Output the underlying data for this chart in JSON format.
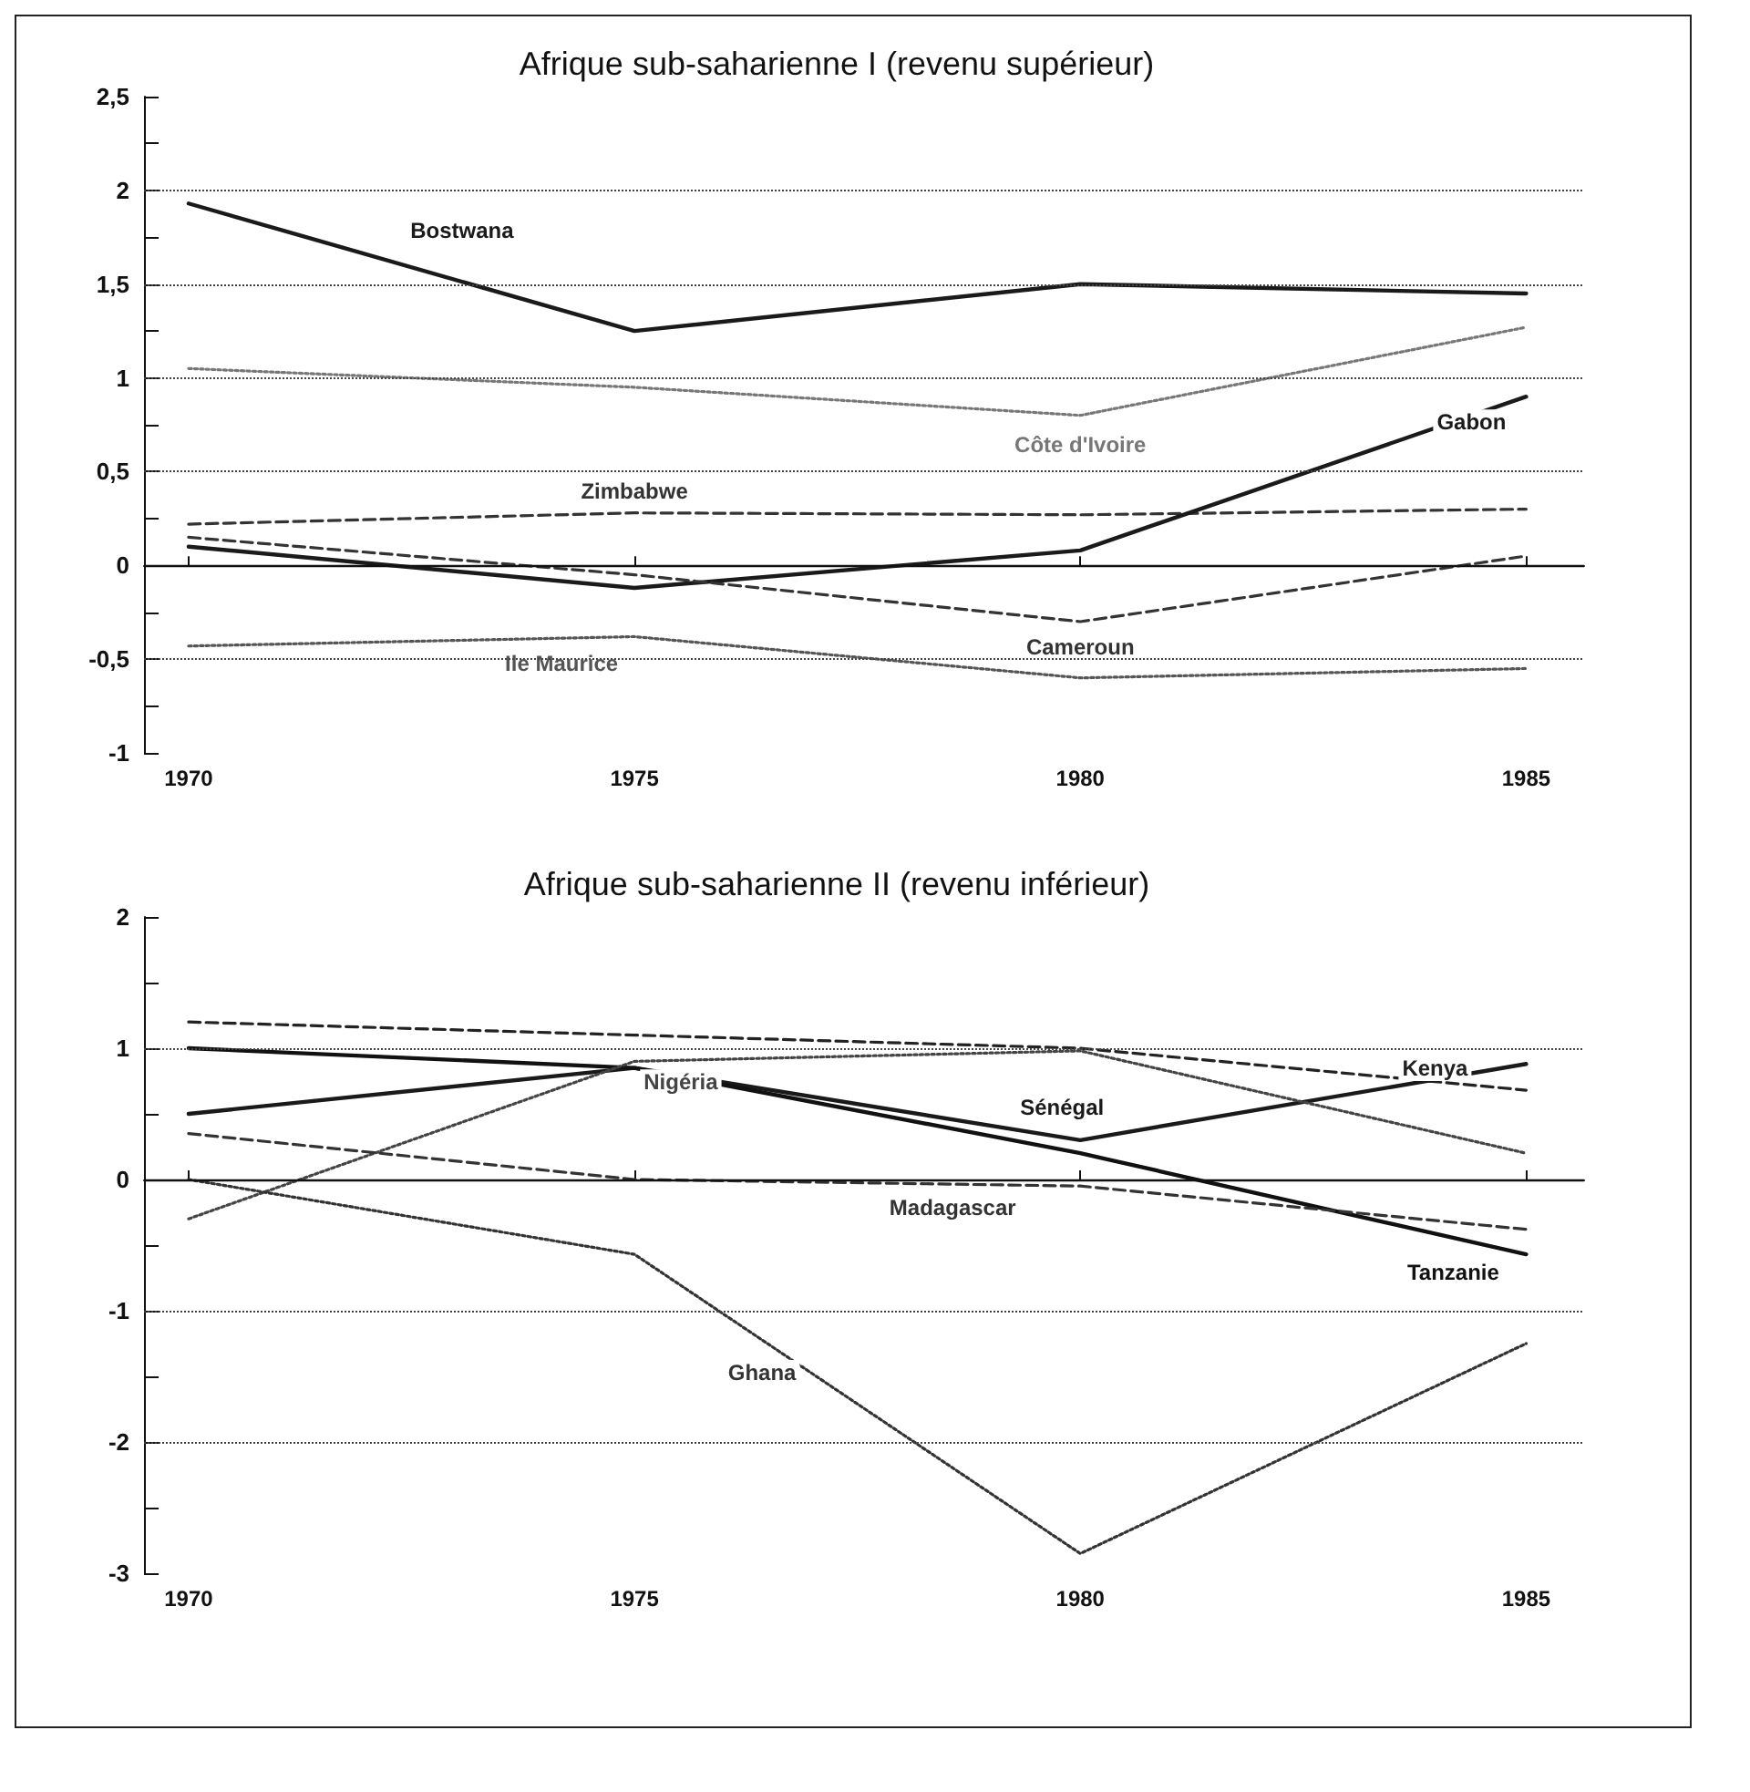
{
  "chart_data": [
    {
      "type": "line",
      "title": "Afrique sub-saharienne I (revenu supérieur)",
      "x": [
        1970,
        1975,
        1980,
        1985
      ],
      "xlim": [
        1969.5,
        1985.65
      ],
      "xticks": [
        1970,
        1975,
        1980,
        1985
      ],
      "ylim": [
        -1,
        2.5
      ],
      "yticks": [
        {
          "value": -1,
          "label": "-1"
        },
        {
          "value": -0.75,
          "label": null
        },
        {
          "value": -0.5,
          "label": "-0,5"
        },
        {
          "value": -0.25,
          "label": null
        },
        0,
        {
          "value": 0.25,
          "label": null
        },
        {
          "value": 0.5,
          "label": "0,5"
        },
        {
          "value": 0.75,
          "label": null
        },
        1,
        {
          "value": 1.25,
          "label": null
        },
        {
          "value": 1.5,
          "label": "1,5"
        },
        {
          "value": 1.75,
          "label": null
        },
        2,
        {
          "value": 2.25,
          "label": null
        },
        {
          "value": 2.5,
          "label": "2,5"
        }
      ],
      "grid": "y",
      "legend": false,
      "ref_lines": [
        {
          "axis": "y",
          "value": 0,
          "color": "#111111",
          "line_style": "solid"
        }
      ],
      "series": [
        {
          "name": "Bostwana",
          "color": "#1a1a1a",
          "line_style": "solid",
          "values": [
            1.93,
            1.25,
            1.5,
            1.45
          ]
        },
        {
          "name": "Côte d'Ivoire",
          "color": "#777777",
          "line_style": "dotted",
          "values": [
            1.05,
            0.95,
            0.8,
            1.27
          ]
        },
        {
          "name": "Zimbabwe",
          "color": "#333333",
          "line_style": "dashed",
          "values": [
            0.22,
            0.28,
            0.27,
            0.3
          ]
        },
        {
          "name": "Gabon",
          "color": "#1a1a1a",
          "line_style": "solid",
          "values": [
            0.1,
            -0.12,
            0.08,
            0.9
          ]
        },
        {
          "name": "Cameroun",
          "color": "#333333",
          "line_style": "dashed",
          "values": [
            0.15,
            -0.05,
            -0.3,
            0.05
          ]
        },
        {
          "name": "Ile Maurice",
          "color": "#555555",
          "line_style": "dotted",
          "values": [
            -0.43,
            -0.38,
            -0.6,
            -0.55
          ]
        }
      ]
    },
    {
      "type": "line",
      "title": "Afrique sub-saharienne II (revenu inférieur)",
      "x": [
        1970,
        1975,
        1980,
        1985
      ],
      "xlim": [
        1969.5,
        1985.65
      ],
      "xticks": [
        1970,
        1975,
        1980,
        1985
      ],
      "ylim": [
        -3,
        2
      ],
      "yticks": [
        -3,
        {
          "value": -2.5,
          "label": null
        },
        -2,
        {
          "value": -1.5,
          "label": null
        },
        -1,
        {
          "value": -0.5,
          "label": null
        },
        0,
        {
          "value": 0.5,
          "label": null
        },
        1,
        {
          "value": 1.5,
          "label": null
        },
        2
      ],
      "grid": "y",
      "legend": false,
      "ref_lines": [
        {
          "axis": "y",
          "value": 0,
          "color": "#111111",
          "line_style": "solid"
        }
      ],
      "series": [
        {
          "name": "Kenya",
          "color": "#222222",
          "line_style": "dashed",
          "values": [
            1.2,
            1.1,
            1.0,
            0.68
          ]
        },
        {
          "name": "Sénégal",
          "color": "#1a1a1a",
          "line_style": "solid",
          "values": [
            0.5,
            0.85,
            0.3,
            0.88
          ]
        },
        {
          "name": "Tanzanie",
          "color": "#111111",
          "line_style": "solid",
          "values": [
            1.0,
            0.85,
            0.2,
            -0.57
          ]
        },
        {
          "name": "Nigéria",
          "color": "#444444",
          "line_style": "dotted",
          "values": [
            -0.3,
            0.9,
            0.98,
            0.2
          ]
        },
        {
          "name": "Madagascar",
          "color": "#333333",
          "line_style": "dashed",
          "values": [
            0.35,
            0.0,
            -0.05,
            -0.38
          ]
        },
        {
          "name": "Ghana",
          "color": "#333333",
          "line_style": "dotted",
          "values": [
            0.0,
            -0.57,
            -2.85,
            -1.25
          ]
        }
      ]
    }
  ]
}
